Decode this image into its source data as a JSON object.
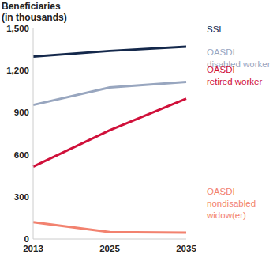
{
  "chart_data": {
    "type": "line",
    "y_label": "Beneficiaries\n(in thousands)",
    "categories": [
      "2013",
      "2025",
      "2035"
    ],
    "series": [
      {
        "name": "SSI",
        "color": "#14284b",
        "values": [
          1300,
          1340,
          1370
        ]
      },
      {
        "name": "OASDI\ndisabled worker",
        "color": "#98a6bf",
        "values": [
          955,
          1080,
          1120
        ]
      },
      {
        "name": "OASDI\nretired worker",
        "color": "#d0103a",
        "values": [
          515,
          775,
          1000
        ]
      },
      {
        "name": "OASDI\nnondisabled\nwidow(er)",
        "color": "#f2826f",
        "values": [
          120,
          50,
          45
        ]
      }
    ],
    "ylim": [
      0,
      1500
    ],
    "yticks": [
      0,
      300,
      600,
      900,
      {
        "value": 1200,
        "label": "1,200"
      },
      {
        "value": 1500,
        "label": "1,500"
      }
    ],
    "grid": false
  }
}
